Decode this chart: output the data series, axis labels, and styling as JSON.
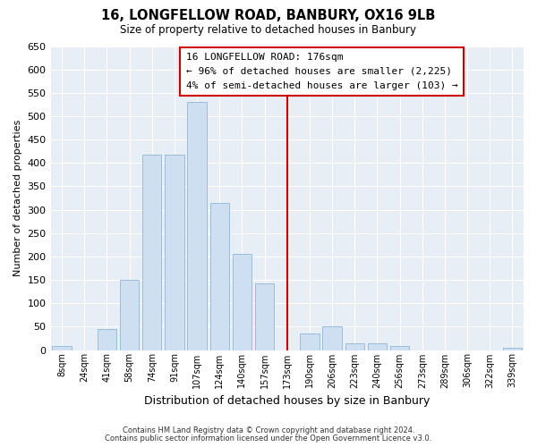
{
  "title": "16, LONGFELLOW ROAD, BANBURY, OX16 9LB",
  "subtitle": "Size of property relative to detached houses in Banbury",
  "xlabel": "Distribution of detached houses by size in Banbury",
  "ylabel": "Number of detached properties",
  "bar_labels": [
    "8sqm",
    "24sqm",
    "41sqm",
    "58sqm",
    "74sqm",
    "91sqm",
    "107sqm",
    "124sqm",
    "140sqm",
    "157sqm",
    "173sqm",
    "190sqm",
    "206sqm",
    "223sqm",
    "240sqm",
    "256sqm",
    "273sqm",
    "289sqm",
    "306sqm",
    "322sqm",
    "339sqm"
  ],
  "bar_values": [
    8,
    0,
    44,
    150,
    417,
    417,
    530,
    315,
    205,
    143,
    0,
    35,
    50,
    15,
    14,
    8,
    0,
    0,
    0,
    0,
    5
  ],
  "bar_color": "#cddff0",
  "bar_edge_color": "#9bbdd8",
  "vline_x_idx": 10,
  "vline_color": "#cc0000",
  "annotation_box_text": "16 LONGFELLOW ROAD: 176sqm\n← 96% of detached houses are smaller (2,225)\n4% of semi-detached houses are larger (103) →",
  "ylim": [
    0,
    650
  ],
  "yticks": [
    0,
    50,
    100,
    150,
    200,
    250,
    300,
    350,
    400,
    450,
    500,
    550,
    600,
    650
  ],
  "background_color": "#ffffff",
  "plot_bg_color": "#e8eef5",
  "grid_color": "#ffffff",
  "footnote1": "Contains HM Land Registry data © Crown copyright and database right 2024.",
  "footnote2": "Contains public sector information licensed under the Open Government Licence v3.0."
}
